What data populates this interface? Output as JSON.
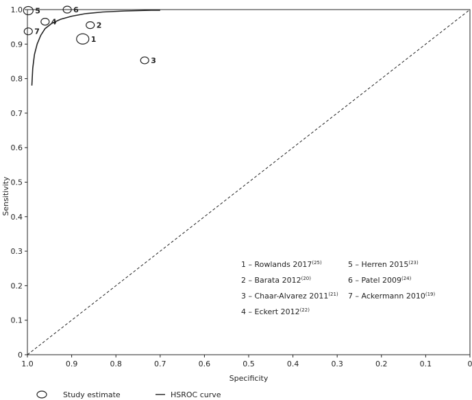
{
  "chart_data": {
    "type": "scatter",
    "title": "",
    "xlabel": "Specificity",
    "ylabel": "Sensitivity",
    "x_reversed": true,
    "xlim": [
      1.0,
      0.0
    ],
    "ylim": [
      0.0,
      1.0
    ],
    "x_ticks": [
      "1.0",
      "0.9",
      "0.8",
      "0.7",
      "0.6",
      "0.5",
      "0.4",
      "0.3",
      "0.2",
      "0.1",
      "0"
    ],
    "y_ticks": [
      "0",
      "0.1",
      "0.2",
      "0.3",
      "0.4",
      "0.5",
      "0.6",
      "0.7",
      "0.8",
      "0.9",
      "1.0"
    ],
    "points": [
      {
        "label": "1",
        "specificity": 0.875,
        "sensitivity": 0.915,
        "weight": "large"
      },
      {
        "label": "2",
        "specificity": 0.858,
        "sensitivity": 0.955,
        "weight": "small"
      },
      {
        "label": "3",
        "specificity": 0.735,
        "sensitivity": 0.853,
        "weight": "small"
      },
      {
        "label": "4",
        "specificity": 0.96,
        "sensitivity": 0.965,
        "weight": "small"
      },
      {
        "label": "5",
        "specificity": 0.998,
        "sensitivity": 0.997,
        "weight": "medium"
      },
      {
        "label": "6",
        "specificity": 0.91,
        "sensitivity": 1.0,
        "weight": "small"
      },
      {
        "label": "7",
        "specificity": 0.998,
        "sensitivity": 0.937,
        "weight": "small"
      }
    ],
    "hsroc_curve": {
      "specificity": [
        0.99,
        0.988,
        0.984,
        0.978,
        0.97,
        0.96,
        0.945,
        0.925,
        0.9,
        0.87,
        0.83,
        0.78,
        0.72,
        0.7
      ],
      "sensitivity": [
        0.78,
        0.83,
        0.87,
        0.9,
        0.925,
        0.945,
        0.96,
        0.972,
        0.981,
        0.988,
        0.993,
        0.996,
        0.998,
        0.998
      ]
    },
    "reference_line": "diagonal-dashed",
    "study_legend": [
      {
        "num": "1",
        "name": "Rowlands 2017",
        "ref": "(25)"
      },
      {
        "num": "2",
        "name": "Barata 2012",
        "ref": "(20)"
      },
      {
        "num": "3",
        "name": "Chaar-Alvarez 2011",
        "ref": "(21)"
      },
      {
        "num": "4",
        "name": "Eckert 2012",
        "ref": "(22)"
      },
      {
        "num": "5",
        "name": "Herren 2015",
        "ref": "(23)"
      },
      {
        "num": "6",
        "name": "Patel 2009",
        "ref": "(24)"
      },
      {
        "num": "7",
        "name": "Ackermann 2010",
        "ref": "(19)"
      }
    ],
    "legend": [
      {
        "name": "Study estimate",
        "symbol": "ellipse"
      },
      {
        "name": "HSROC curve",
        "symbol": "line"
      }
    ],
    "line_color": "#222222"
  }
}
